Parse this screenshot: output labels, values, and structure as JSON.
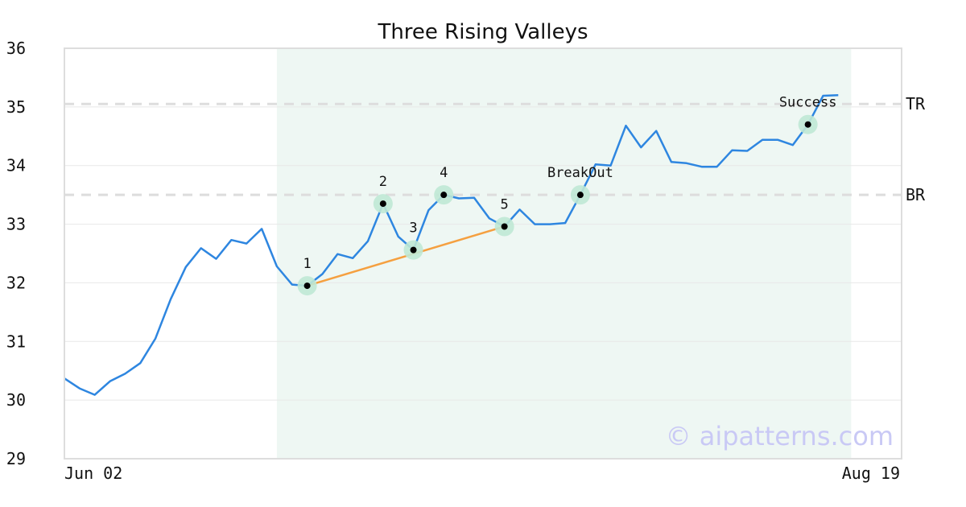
{
  "chart_data": {
    "type": "line",
    "title": "Three Rising Valleys",
    "xlabel": "",
    "ylabel": "",
    "ylim": [
      29,
      36
    ],
    "yticks": [
      29,
      30,
      31,
      32,
      33,
      34,
      35,
      36
    ],
    "xtick_labels": {
      "start": "Jun 02",
      "end": "Aug 19"
    },
    "grid": "horizontal",
    "colors": {
      "line": "#2e86e0",
      "trend": "#f5a040",
      "shade": "#eef7f3",
      "marker_halo": "#bfe8d5",
      "level_line": "#dddddd",
      "watermark": "#c9c9f5"
    },
    "series": [
      {
        "values": [
          30.37,
          30.2,
          30.09,
          30.32,
          30.45,
          30.63,
          31.05,
          31.72,
          32.27,
          32.59,
          32.41,
          32.73,
          32.67,
          32.92,
          32.28,
          31.97,
          31.95,
          32.15,
          32.49,
          32.42,
          32.71,
          33.35,
          32.79,
          32.56,
          33.24,
          33.5,
          33.44,
          33.45,
          33.1,
          32.96,
          33.25,
          33.0,
          33.0,
          33.02,
          33.5,
          34.02,
          34.0,
          34.68,
          34.31,
          34.59,
          34.06,
          34.04,
          33.98,
          33.98,
          34.26,
          34.25,
          34.44,
          34.44,
          34.35,
          34.7,
          35.19,
          35.2
        ]
      }
    ],
    "shaded_region": {
      "from_index": 14,
      "to_index": 51
    },
    "trend_line": {
      "from_index": 16,
      "to_index": 29
    },
    "markers": [
      {
        "label": "1",
        "index": 16
      },
      {
        "label": "2",
        "index": 21
      },
      {
        "label": "3",
        "index": 23
      },
      {
        "label": "4",
        "index": 25
      },
      {
        "label": "5",
        "index": 29
      },
      {
        "label": "BreakOut",
        "index": 34
      },
      {
        "label": "Success",
        "index": 49
      }
    ],
    "levels": [
      {
        "label": "TR",
        "value": 35.05
      },
      {
        "label": "BR",
        "value": 33.5
      }
    ],
    "watermark": "© aipatterns.com"
  }
}
